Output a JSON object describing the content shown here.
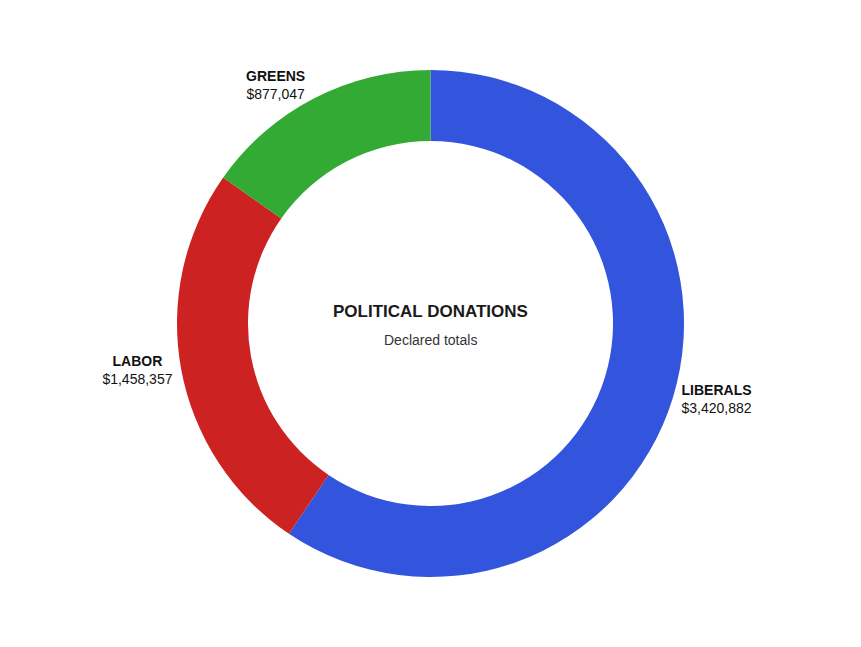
{
  "chart_data": {
    "type": "donut",
    "title": "POLITICAL DONATIONS",
    "subtitle": "Declared totals",
    "categories": [
      "LIBERALS",
      "LABOR",
      "GREENS"
    ],
    "values": [
      3420882,
      1458357,
      877047
    ],
    "value_labels": [
      "$3,420,882",
      "$1,458,357",
      "$877,047"
    ],
    "colors": [
      "#3355dd",
      "#cc2222",
      "#33aa33"
    ],
    "data_labels": true
  }
}
